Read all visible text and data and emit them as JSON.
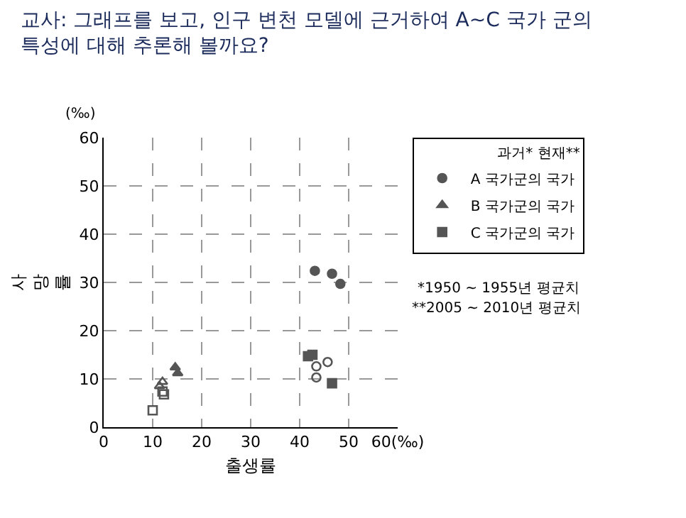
{
  "chart_data": {
    "type": "scatter",
    "title": "교사: 그래프를 보고, 인구 변천 모델에 근거하여 A~C 국가 군의 특성에 대해 추론해 볼까요?",
    "xlabel": "출생률",
    "ylabel": "사망률",
    "legend_title": "과거* 현재**",
    "xlim": [
      0,
      60
    ],
    "xticks": [
      0,
      10,
      20,
      30,
      40,
      50,
      {
        "value": 60,
        "label": "60(‰)"
      }
    ],
    "ylim": [
      0,
      60
    ],
    "yticks": [
      0,
      10,
      20,
      30,
      40,
      50,
      60
    ],
    "grid": true,
    "legend": "top right",
    "annotations": [
      "(‰)",
      "*1950 ~ 1955년 평균치",
      "**2005 ~ 2010년 평균치"
    ],
    "series": [
      {
        "name": "A 국가군의 국가",
        "color": "#555555",
        "marker": "circle",
        "x": [
          43.1,
          46.6,
          48.3
        ],
        "values": [
          32.4,
          31.8,
          29.7
        ]
      },
      {
        "name": "B 국가군의 국가",
        "color": "#555555",
        "marker": "triangle",
        "x": [
          14.6,
          15.1
        ],
        "values": [
          12.4,
          11.2
        ]
      },
      {
        "name": "C 국가군의 국가",
        "color": "#555555",
        "marker": "square",
        "x": [
          41.7,
          42.6,
          46.6
        ],
        "values": [
          14.7,
          15.0,
          9.1
        ]
      },
      {
        "color": "#555555",
        "marker": "circle-open",
        "x": [
          45.7,
          43.4,
          43.4
        ],
        "values": [
          13.5,
          12.6,
          10.3
        ]
      },
      {
        "color": "#555555",
        "marker": "triangle-open",
        "x": [
          12.0,
          11.4
        ],
        "values": [
          9.4,
          8.5
        ]
      },
      {
        "color": "#555555",
        "marker": "square-open",
        "x": [
          12.3,
          12.0,
          10.0
        ],
        "values": [
          6.8,
          7.4,
          3.5
        ]
      }
    ]
  }
}
